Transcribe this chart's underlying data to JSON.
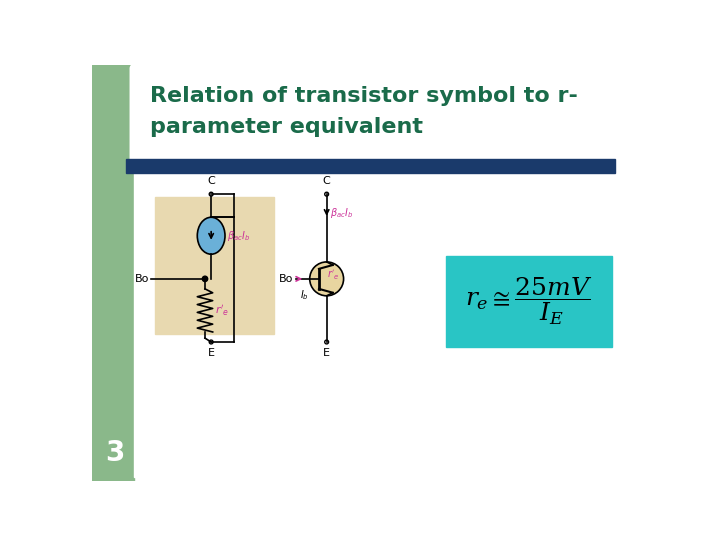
{
  "title_line1": "Relation of transistor symbol to r-",
  "title_line2": "parameter equivalent",
  "title_color": "#1a6b4a",
  "bg_color": "#ffffff",
  "left_bar_color": "#8ab88a",
  "header_bar_color": "#1a3a6b",
  "slide_number": "3",
  "slide_number_color": "#ffffff",
  "teal_box_color": "#29c5c5",
  "circuit1_bg": "#e8d9b0",
  "current_source_color": "#6ab0d8",
  "pink_color": "#cc3399",
  "transistor_bg": "#e8d5a0"
}
